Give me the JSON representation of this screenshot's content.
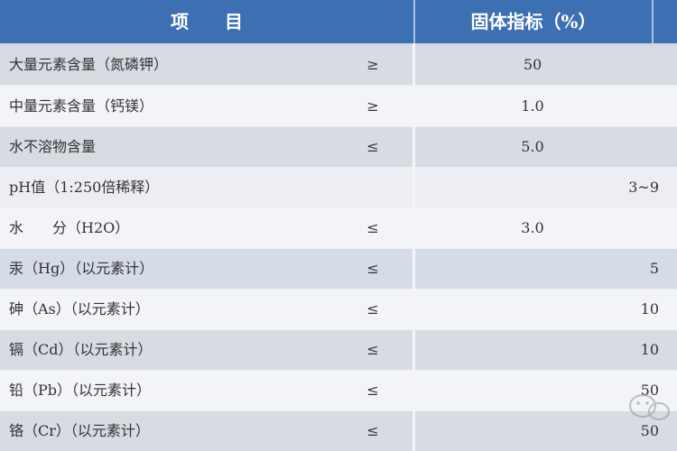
{
  "header": {
    "item": "项　　目",
    "solid": "固体指标（%）"
  },
  "rows": [
    {
      "name": "大量元素含量（氮磷钾）",
      "op": "≥",
      "value": "50",
      "align": "center",
      "shade": "gray"
    },
    {
      "name": "中量元素含量（钙镁）",
      "op": "≥",
      "value": "1.0",
      "align": "center",
      "shade": "white"
    },
    {
      "name": "水不溶物含量",
      "op": "≤",
      "value": "5.0",
      "align": "center",
      "shade": "gray"
    },
    {
      "name": "pH值（1:250倍稀释）",
      "op": "",
      "value": "3~9",
      "align": "right",
      "shade": "light"
    },
    {
      "name": "水　　分（H2O）",
      "op": "≤",
      "value": "3.0",
      "align": "center",
      "shade": "white"
    },
    {
      "name": "汞（Hg）（以元素计）",
      "op": "≤",
      "value": "5",
      "align": "right",
      "shade": "blue"
    },
    {
      "name": "砷（As）（以元素计）",
      "op": "≤",
      "value": "10",
      "align": "right",
      "shade": "white"
    },
    {
      "name": "镉（Cd）（以元素计）",
      "op": "≤",
      "value": "10",
      "align": "right",
      "shade": "gray"
    },
    {
      "name": "铅（Pb）（以元素计）",
      "op": "≤",
      "value": "50",
      "align": "right",
      "shade": "white"
    },
    {
      "name": "铬（Cr）（以元素计）",
      "op": "≤",
      "value": "50",
      "align": "right",
      "shade": "gray"
    }
  ],
  "colors": {
    "header": "#3d6fb3",
    "row_gray": "#d8dbe2",
    "row_light": "#f3f4f7"
  },
  "watermark_icon": "wechat-icon"
}
